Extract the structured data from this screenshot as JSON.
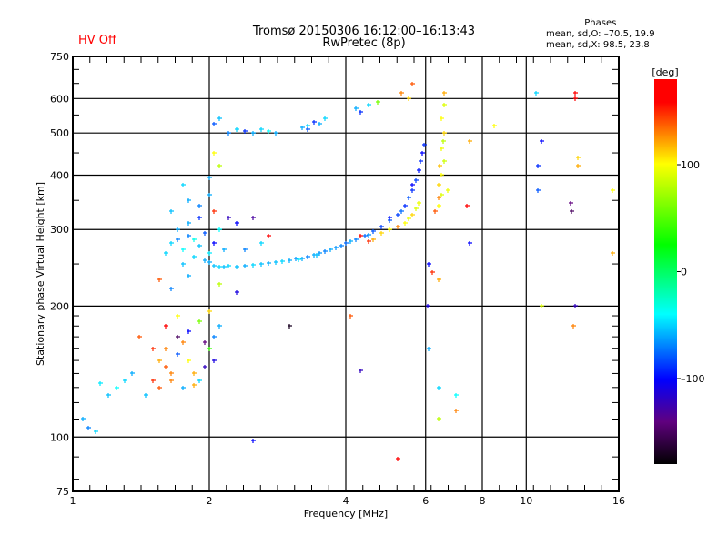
{
  "header": {
    "title": "Tromsø 20150306 16:12:00–16:13:43",
    "subtitle": "RwPretec (8p)",
    "status": "HV Off",
    "stats_title": "Phases",
    "stats_o": "mean, sd,O: –70.5, 19.9",
    "stats_x": "mean, sd,X:  98.5, 23.8"
  },
  "colors": {
    "status": "#ff0000",
    "grid": "#000000"
  },
  "chart_data": {
    "type": "scatter",
    "title": "Tromsø 20150306 16:12:00–16:13:43",
    "xlabel": "Frequency [MHz]",
    "ylabel": "Stationary phase Virtual Height [km]",
    "xscale": "log",
    "yscale": "log",
    "xlim": [
      1,
      16
    ],
    "ylim": [
      75,
      750
    ],
    "xticks": [
      1,
      2,
      4,
      6,
      8,
      10,
      16
    ],
    "yticks": [
      75,
      100,
      200,
      300,
      400,
      500,
      600,
      750
    ],
    "grid": true,
    "colorbar": {
      "label": "[deg]",
      "range": [
        -180,
        180
      ],
      "ticks": [
        100,
        0,
        -100
      ]
    },
    "points": [
      [
        2.0,
        252,
        -60
      ],
      [
        2.05,
        248,
        -55
      ],
      [
        2.1,
        247,
        -50
      ],
      [
        2.15,
        246,
        -55
      ],
      [
        2.2,
        248,
        -50
      ],
      [
        2.3,
        247,
        -55
      ],
      [
        2.4,
        248,
        -60
      ],
      [
        2.5,
        249,
        -50
      ],
      [
        2.6,
        250,
        -55
      ],
      [
        2.7,
        251,
        -60
      ],
      [
        2.8,
        252,
        -55
      ],
      [
        3.0,
        255,
        -60
      ],
      [
        3.1,
        257,
        -65
      ],
      [
        3.2,
        258,
        -60
      ],
      [
        3.3,
        260,
        -70
      ],
      [
        3.4,
        262,
        -60
      ],
      [
        3.5,
        265,
        -65
      ],
      [
        3.6,
        267,
        -70
      ],
      [
        3.7,
        270,
        -60
      ],
      [
        3.8,
        273,
        -65
      ],
      [
        3.9,
        276,
        -70
      ],
      [
        4.0,
        280,
        -75
      ],
      [
        4.1,
        282,
        -60
      ],
      [
        4.2,
        285,
        -70
      ],
      [
        4.4,
        290,
        -75
      ],
      [
        4.6,
        297,
        -80
      ],
      [
        4.8,
        305,
        -85
      ],
      [
        5.0,
        315,
        -80
      ],
      [
        5.2,
        325,
        -85
      ],
      [
        5.4,
        340,
        -90
      ],
      [
        5.5,
        355,
        -80
      ],
      [
        5.6,
        370,
        -90
      ],
      [
        5.7,
        390,
        -85
      ],
      [
        5.8,
        410,
        -95
      ],
      [
        5.85,
        430,
        -90
      ],
      [
        5.9,
        450,
        -100
      ],
      [
        5.95,
        470,
        -90
      ],
      [
        5.3,
        330,
        -75
      ],
      [
        5.6,
        380,
        -100
      ],
      [
        5.0,
        320,
        -95
      ],
      [
        4.5,
        292,
        -65
      ],
      [
        3.45,
        263,
        -55
      ],
      [
        2.9,
        254,
        -50
      ],
      [
        3.15,
        256,
        -45
      ],
      [
        4.6,
        285,
        120
      ],
      [
        4.8,
        295,
        110
      ],
      [
        5.0,
        300,
        100
      ],
      [
        5.2,
        305,
        130
      ],
      [
        5.4,
        310,
        100
      ],
      [
        5.5,
        318,
        95
      ],
      [
        5.6,
        325,
        110
      ],
      [
        5.7,
        335,
        90
      ],
      [
        5.8,
        345,
        95
      ],
      [
        6.3,
        330,
        140
      ],
      [
        6.4,
        340,
        100
      ],
      [
        6.5,
        360,
        90
      ],
      [
        6.4,
        380,
        110
      ],
      [
        6.5,
        400,
        100
      ],
      [
        6.6,
        430,
        85
      ],
      [
        6.5,
        460,
        95
      ],
      [
        6.6,
        500,
        110
      ],
      [
        6.5,
        540,
        100
      ],
      [
        6.6,
        580,
        90
      ],
      [
        6.6,
        620,
        120
      ],
      [
        6.4,
        355,
        130
      ],
      [
        6.7,
        370,
        95
      ],
      [
        6.55,
        480,
        80
      ],
      [
        6.45,
        420,
        115
      ],
      [
        4.3,
        290,
        160
      ],
      [
        4.5,
        282,
        150
      ],
      [
        1.65,
        280,
        -50
      ],
      [
        1.7,
        300,
        -60
      ],
      [
        1.75,
        270,
        -40
      ],
      [
        1.8,
        290,
        -70
      ],
      [
        1.85,
        260,
        -50
      ],
      [
        1.9,
        275,
        -55
      ],
      [
        1.95,
        295,
        -80
      ],
      [
        2.0,
        265,
        -45
      ],
      [
        1.8,
        310,
        -60
      ],
      [
        1.9,
        320,
        -90
      ],
      [
        1.75,
        250,
        -55
      ],
      [
        1.85,
        285,
        -35
      ],
      [
        1.95,
        255,
        -60
      ],
      [
        1.6,
        265,
        -50
      ],
      [
        1.7,
        285,
        -70
      ],
      [
        2.05,
        280,
        -100
      ],
      [
        2.1,
        300,
        -40
      ],
      [
        1.9,
        340,
        -70
      ],
      [
        2.0,
        360,
        -60
      ],
      [
        1.8,
        350,
        -60
      ],
      [
        1.75,
        380,
        -50
      ],
      [
        2.05,
        330,
        150
      ],
      [
        2.2,
        320,
        -120
      ],
      [
        2.3,
        310,
        -100
      ],
      [
        2.5,
        320,
        -130
      ],
      [
        2.15,
        270,
        -60
      ],
      [
        2.4,
        270,
        -70
      ],
      [
        2.6,
        280,
        -50
      ],
      [
        2.7,
        290,
        160
      ],
      [
        1.55,
        230,
        140
      ],
      [
        1.65,
        220,
        -70
      ],
      [
        1.8,
        235,
        -60
      ],
      [
        2.1,
        225,
        80
      ],
      [
        2.3,
        215,
        -110
      ],
      [
        1.65,
        330,
        -55
      ],
      [
        2.0,
        395,
        -60
      ],
      [
        1.4,
        170,
        140
      ],
      [
        1.5,
        160,
        150
      ],
      [
        1.55,
        150,
        120
      ],
      [
        1.6,
        145,
        140
      ],
      [
        1.65,
        140,
        130
      ],
      [
        1.7,
        155,
        -80
      ],
      [
        1.75,
        165,
        130
      ],
      [
        1.8,
        150,
        100
      ],
      [
        1.85,
        140,
        120
      ],
      [
        1.9,
        135,
        -50
      ],
      [
        1.95,
        145,
        -120
      ],
      [
        2.0,
        160,
        40
      ],
      [
        1.6,
        180,
        160
      ],
      [
        1.7,
        190,
        100
      ],
      [
        1.8,
        175,
        -100
      ],
      [
        1.9,
        185,
        60
      ],
      [
        2.0,
        195,
        110
      ],
      [
        1.5,
        135,
        150
      ],
      [
        1.55,
        130,
        140
      ],
      [
        1.65,
        135,
        130
      ],
      [
        1.75,
        130,
        -60
      ],
      [
        1.85,
        132,
        120
      ],
      [
        1.45,
        125,
        -55
      ],
      [
        1.3,
        135,
        -50
      ],
      [
        1.25,
        130,
        -40
      ],
      [
        1.2,
        125,
        -55
      ],
      [
        1.35,
        140,
        -60
      ],
      [
        1.15,
        133,
        -45
      ],
      [
        2.05,
        170,
        -70
      ],
      [
        2.1,
        180,
        -60
      ],
      [
        2.05,
        150,
        -110
      ],
      [
        1.95,
        165,
        -140
      ],
      [
        1.7,
        170,
        -150
      ],
      [
        1.6,
        160,
        130
      ],
      [
        1.05,
        110,
        -60
      ],
      [
        1.08,
        105,
        -70
      ],
      [
        1.12,
        103,
        -50
      ],
      [
        2.2,
        500,
        -70
      ],
      [
        2.3,
        510,
        -50
      ],
      [
        2.4,
        505,
        -90
      ],
      [
        2.5,
        500,
        -60
      ],
      [
        2.6,
        510,
        -50
      ],
      [
        2.7,
        505,
        -40
      ],
      [
        2.8,
        500,
        -60
      ],
      [
        2.05,
        525,
        -80
      ],
      [
        2.1,
        540,
        -55
      ],
      [
        3.2,
        515,
        -60
      ],
      [
        3.3,
        520,
        -50
      ],
      [
        3.4,
        530,
        -90
      ],
      [
        3.5,
        525,
        -60
      ],
      [
        3.6,
        540,
        -50
      ],
      [
        3.3,
        510,
        -80
      ],
      [
        4.2,
        570,
        -60
      ],
      [
        4.3,
        560,
        -90
      ],
      [
        4.5,
        580,
        -50
      ],
      [
        4.7,
        590,
        60
      ],
      [
        2.05,
        450,
        100
      ],
      [
        2.1,
        420,
        80
      ],
      [
        5.3,
        620,
        130
      ],
      [
        5.6,
        650,
        140
      ],
      [
        5.5,
        600,
        110
      ],
      [
        6.1,
        250,
        -100
      ],
      [
        6.05,
        200,
        -110
      ],
      [
        6.2,
        240,
        150
      ],
      [
        6.4,
        230,
        120
      ],
      [
        6.1,
        160,
        -60
      ],
      [
        7.5,
        280,
        -100
      ],
      [
        7.4,
        340,
        160
      ],
      [
        7.5,
        480,
        120
      ],
      [
        8.5,
        520,
        100
      ],
      [
        10.5,
        620,
        -50
      ],
      [
        10.8,
        480,
        -100
      ],
      [
        10.6,
        420,
        -90
      ],
      [
        10.6,
        370,
        -80
      ],
      [
        12.8,
        600,
        160
      ],
      [
        12.8,
        620,
        170
      ],
      [
        12.5,
        345,
        -140
      ],
      [
        12.6,
        330,
        -150
      ],
      [
        12.8,
        200,
        -120
      ],
      [
        12.7,
        180,
        130
      ],
      [
        13.0,
        440,
        110
      ],
      [
        13.0,
        420,
        120
      ],
      [
        15.5,
        370,
        100
      ],
      [
        15.5,
        265,
        120
      ],
      [
        10.8,
        200,
        90
      ],
      [
        6.4,
        130,
        -50
      ],
      [
        6.4,
        110,
        80
      ],
      [
        7.0,
        125,
        -40
      ],
      [
        7.0,
        115,
        130
      ],
      [
        3.0,
        180,
        -170
      ],
      [
        2.5,
        98,
        -100
      ],
      [
        4.3,
        142,
        -120
      ],
      [
        4.1,
        190,
        140
      ],
      [
        5.2,
        89,
        160
      ]
    ]
  }
}
